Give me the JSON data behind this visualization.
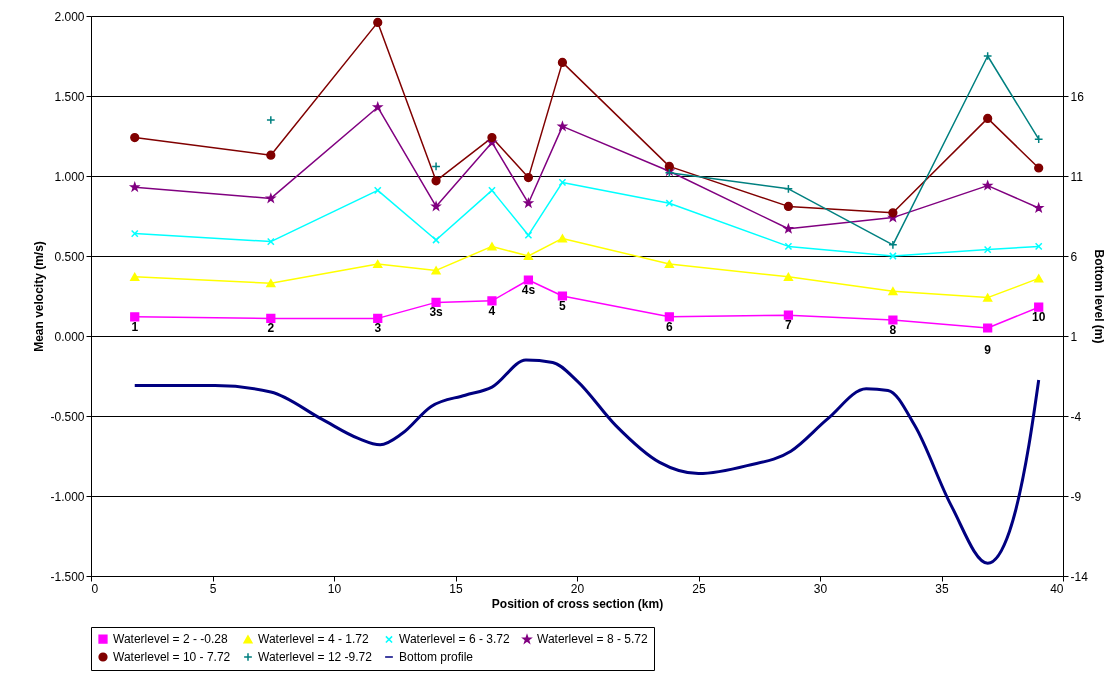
{
  "chart_data": {
    "type": "line",
    "xlabel": "Position of cross section (km)",
    "ylabel": "Mean velocity (m/s)",
    "y2label": "Bottom level (m)",
    "x": [
      1.8,
      7.4,
      11.8,
      14.2,
      16.5,
      18.0,
      19.4,
      23.8,
      28.7,
      33.0,
      36.9,
      39.0
    ],
    "series": [
      {
        "name": "Waterlevel = 2 - -0.28",
        "color": "#ff00ff",
        "marker": "square",
        "values": [
          0.12,
          0.11,
          0.11,
          0.21,
          0.22,
          0.35,
          0.25,
          0.12,
          0.13,
          0.1,
          0.05,
          0.18
        ]
      },
      {
        "name": "Waterlevel = 4 - 1.72",
        "color": "#ffff00",
        "marker": "triangle",
        "values": [
          0.37,
          0.33,
          0.45,
          0.41,
          0.56,
          0.5,
          0.61,
          0.45,
          0.37,
          0.28,
          0.24,
          0.36
        ]
      },
      {
        "name": "Waterlevel = 6 - 3.72",
        "color": "#00ffff",
        "marker": "x",
        "values": [
          0.64,
          0.59,
          0.91,
          0.6,
          0.91,
          0.63,
          0.96,
          0.83,
          0.56,
          0.5,
          0.54,
          0.56
        ]
      },
      {
        "name": "Waterlevel = 8 - 5.72",
        "color": "#800080",
        "marker": "star",
        "values": [
          0.93,
          0.86,
          1.43,
          0.81,
          1.21,
          0.83,
          1.31,
          1.03,
          0.67,
          0.74,
          0.94,
          0.8
        ]
      },
      {
        "name": "Waterlevel = 10 - 7.72",
        "color": "#800000",
        "marker": "circle",
        "values": [
          1.24,
          1.13,
          1.96,
          0.97,
          1.24,
          0.99,
          1.71,
          1.06,
          0.81,
          0.77,
          1.36,
          1.05
        ]
      },
      {
        "name": "Waterlevel = 12 -9.72",
        "color": "#008080",
        "marker": "cross",
        "values": [
          null,
          1.35,
          null,
          1.06,
          null,
          null,
          null,
          1.02,
          0.92,
          0.57,
          1.75,
          1.23
        ]
      },
      {
        "name": "Bottom profile",
        "color": "#000080",
        "marker": "none",
        "axis": "y2",
        "x": [
          1.8,
          5.1,
          7.4,
          9.5,
          11.0,
          11.9,
          12.8,
          14.0,
          15.4,
          16.5,
          17.9,
          19.0,
          20.0,
          21.6,
          23.4,
          25.0,
          27.0,
          28.8,
          30.3,
          31.9,
          32.8,
          33.9,
          35.4,
          36.9,
          37.8,
          38.6,
          39.0
        ],
        "values": [
          -2.1,
          -2.1,
          -2.5,
          -4.2,
          -5.4,
          -5.8,
          -5.1,
          -3.4,
          -2.7,
          -2.2,
          -0.5,
          -0.65,
          -1.8,
          -4.6,
          -6.9,
          -7.6,
          -7.1,
          -6.2,
          -4.2,
          -2.3,
          -2.4,
          -4.6,
          -9.6,
          -13.2,
          -11.2,
          -5.8,
          -1.75
        ]
      }
    ],
    "xlim": [
      0,
      40
    ],
    "xticks": [
      0,
      5,
      10,
      15,
      20,
      25,
      30,
      35,
      40
    ],
    "ylim": [
      -1.5,
      2
    ],
    "yticks": [
      {
        "value": -1.5,
        "label": "-1.500"
      },
      {
        "value": -1,
        "label": "-1.000"
      },
      {
        "value": -0.5,
        "label": "-0.500"
      },
      {
        "value": 0,
        "label": "0.000"
      },
      {
        "value": 0.5,
        "label": "0.500"
      },
      {
        "value": 1,
        "label": "1.000"
      },
      {
        "value": 1.5,
        "label": "1.500"
      },
      {
        "value": 2,
        "label": "2.000"
      }
    ],
    "y2lim": [
      -14,
      21
    ],
    "y2ticks": [
      -14,
      -9,
      -4,
      1,
      6,
      11,
      16
    ],
    "grid": "y",
    "legend": "bottom",
    "line_style": "solid",
    "annotations": [
      "1",
      "2",
      "3",
      "3s",
      "4",
      "4s",
      "5",
      "6",
      "7",
      "8",
      "9",
      "10"
    ]
  }
}
